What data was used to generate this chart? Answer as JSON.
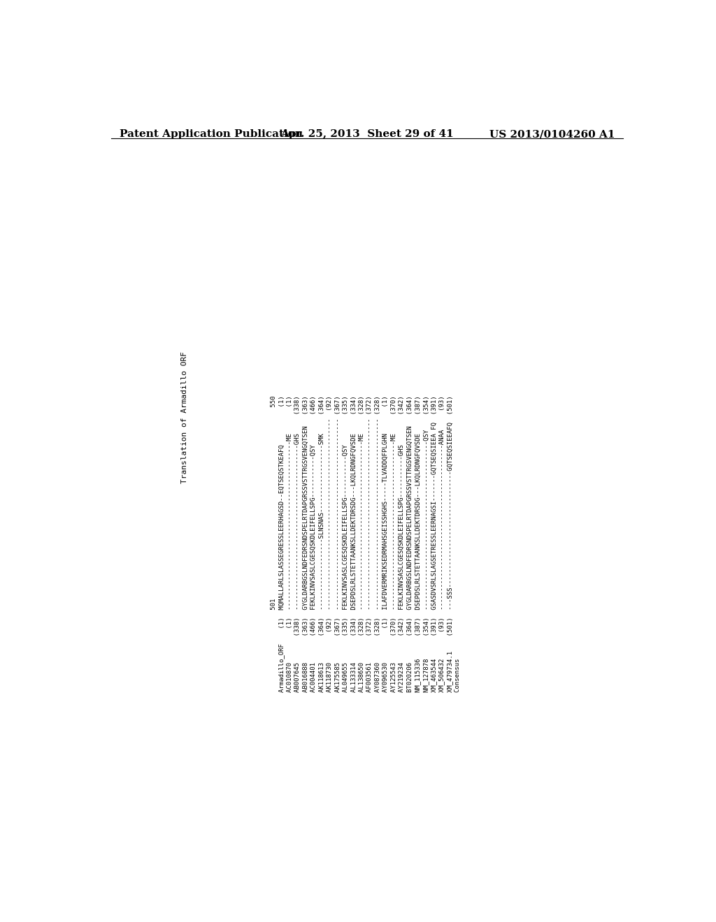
{
  "header_left": "Patent Application Publication",
  "header_middle": "Apr. 25, 2013  Sheet 29 of 41",
  "header_right": "US 2013/0104260 A1",
  "background_color": "#ffffff",
  "text_color": "#000000",
  "header_font_size": 11,
  "lines": [
    {
      "name": "Armadillo_ORF",
      "lnum": "(1)",
      "seq": "MQMALLARLSLASSEGRESSLEERHAGSD--EQTSEQSTKEAFQ",
      "rnum": "(1)"
    },
    {
      "name": "AC010870",
      "lnum": "(1)",
      "seq": "---------------------------------------------ME",
      "rnum": "(1)"
    },
    {
      "name": "AB007645",
      "lnum": "(338)",
      "seq": "--------------------------------------------GHS",
      "rnum": "(338)"
    },
    {
      "name": "AB016888",
      "lnum": "(363)",
      "seq": "GYGLDARBGSLNDFEDRSNDSPELRTDAPGRSSVSTTRGSVENGQTSEN",
      "rnum": "(363)"
    },
    {
      "name": "AC004401",
      "lnum": "(466)",
      "seq": "FEKLKINVSASLCGESQSKDLEIFELLSPG-----------QSY",
      "rnum": "(466)"
    },
    {
      "name": "AK118613",
      "lnum": "(364)",
      "seq": "-------------------SLNSNAS------------------SMK",
      "rnum": "(364)"
    },
    {
      "name": "AK118730",
      "lnum": "(92)",
      "seq": "---------------------------------------------------",
      "rnum": "(92)"
    },
    {
      "name": "AK175585",
      "lnum": "(367)",
      "seq": "---------------------------------------------------",
      "rnum": "(367)"
    },
    {
      "name": "AL049655",
      "lnum": "(335)",
      "seq": "FEKLKINVSASLCGESQSKDLEIFELLSPG-----------QSY",
      "rnum": "(335)"
    },
    {
      "name": "AL133314",
      "lnum": "(334)",
      "seq": "DSEPDSLRLSTETTAANKSLLDEKTDRSDG---LKQLRDNGFQVSDE",
      "rnum": "(334)"
    },
    {
      "name": "AL138650",
      "lnum": "(328)",
      "seq": "---------------------------------------------ME",
      "rnum": "(328)"
    },
    {
      "name": "AF003561",
      "lnum": "(372)",
      "seq": "---------------------------------------------------",
      "rnum": "(372)"
    },
    {
      "name": "AY087360",
      "lnum": "(328)",
      "seq": "---------------------------------------------------",
      "rnum": "(328)"
    },
    {
      "name": "AY096530",
      "lnum": "(1)",
      "seq": "ILAFDVERMRIKSEDRMAHSGEISSHGHS-----TLVADDQFPLGHN",
      "rnum": "(1)"
    },
    {
      "name": "AY125543",
      "lnum": "(370)",
      "seq": "---------------------------------------------ME",
      "rnum": "(370)"
    },
    {
      "name": "AY219234",
      "lnum": "(342)",
      "seq": "FEKLKINVSASLCGESQSKDLEIFELLSPG-----------GHS",
      "rnum": "(342)"
    },
    {
      "name": "BT020206",
      "lnum": "(364)",
      "seq": "GYGLDARBGSLNDFEDRSNDSPELRTDAPGRSSVSTTRGSVENGQTSEN",
      "rnum": "(364)"
    },
    {
      "name": "NM_115336",
      "lnum": "(387)",
      "seq": "DSEPDSLRLSTETTAANKSLLDEKTDRSDG---LKQLRDNGFQVSDE",
      "rnum": "(387)"
    },
    {
      "name": "NM_127878",
      "lnum": "(354)",
      "seq": "---------------------------------------------QSY",
      "rnum": "(354)"
    },
    {
      "name": "XM_463544",
      "lnum": "(391)",
      "seq": "GSASDVSRLSLAGSETRESSLEERNAGSI-------GQTSEQSIEEA FQ",
      "rnum": "(391)"
    },
    {
      "name": "XM_506432",
      "lnum": "(93)",
      "seq": "--------------------------------------------ANAA",
      "rnum": "(93)"
    },
    {
      "name": "XM_479734.1",
      "lnum": "(501)",
      "seq": "---SSS-------------------------------GQTSEQSIEEAFQ",
      "rnum": "(501)"
    },
    {
      "name": "Consensus",
      "lnum": "",
      "seq": "",
      "rnum": ""
    }
  ]
}
